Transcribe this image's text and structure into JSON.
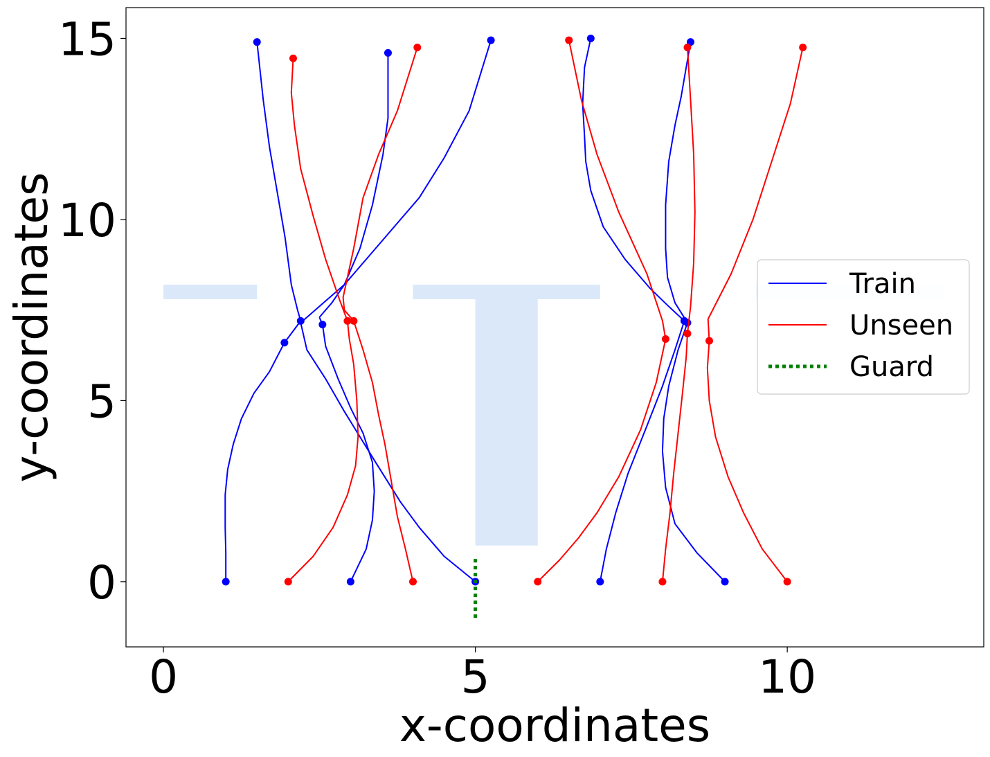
{
  "chart_data": {
    "type": "line",
    "title": "",
    "xlabel": "x-coordinates",
    "ylabel": "y-coordinates",
    "xlim": [
      -0.6,
      13.15
    ],
    "ylim": [
      -1.8,
      15.85
    ],
    "xticks": [
      0,
      5,
      10
    ],
    "yticks": [
      0,
      5,
      10,
      15
    ],
    "grid": false,
    "legend_position": "center-right",
    "colors": {
      "train": "#0000ff",
      "unseen": "#ff0000",
      "guard": "#008000",
      "background_shape": "#dbe8fa"
    },
    "legend": [
      {
        "label": "Train",
        "color": "#0000ff",
        "style": "solid"
      },
      {
        "label": "Unseen",
        "color": "#ff0000",
        "style": "solid"
      },
      {
        "label": "Guard",
        "color": "#008000",
        "style": "dotted"
      }
    ],
    "background_shapes": [
      {
        "points": [
          [
            0,
            7.8
          ],
          [
            1.5,
            7.8
          ],
          [
            1.5,
            8.2
          ],
          [
            0,
            8.2
          ]
        ]
      },
      {
        "points": [
          [
            4,
            7.8
          ],
          [
            7,
            7.8
          ],
          [
            7,
            8.2
          ],
          [
            4,
            8.2
          ]
        ]
      },
      {
        "points": [
          [
            5,
            1
          ],
          [
            6,
            1
          ],
          [
            6,
            7.8
          ],
          [
            5,
            7.8
          ]
        ]
      },
      {
        "points": [
          [
            9.5,
            7.8
          ],
          [
            12.5,
            7.8
          ],
          [
            12.5,
            8.2
          ],
          [
            9.5,
            8.2
          ]
        ],
        "faint": true
      }
    ],
    "guard": {
      "x": [
        5,
        5
      ],
      "y": [
        -1,
        0.7
      ]
    },
    "series": [
      {
        "group": "train",
        "points": [
          [
            1.0,
            0
          ],
          [
            1.0,
            0.8
          ],
          [
            0.99,
            1.5
          ],
          [
            0.99,
            2.4
          ],
          [
            1.03,
            3.1
          ],
          [
            1.12,
            3.8
          ],
          [
            1.25,
            4.5
          ],
          [
            1.45,
            5.2
          ],
          [
            1.7,
            5.8
          ],
          [
            1.94,
            6.6
          ],
          [
            2.2,
            7.2
          ]
        ],
        "markers": [
          [
            1.0,
            0
          ],
          [
            1.94,
            6.6
          ],
          [
            2.2,
            7.2
          ]
        ]
      },
      {
        "group": "train",
        "points": [
          [
            2.2,
            7.2
          ],
          [
            2.15,
            7.5
          ],
          [
            2.05,
            8.2
          ],
          [
            1.95,
            9.5
          ],
          [
            1.82,
            10.8
          ],
          [
            1.7,
            12
          ],
          [
            1.6,
            13.3
          ],
          [
            1.5,
            14.9
          ]
        ],
        "markers": [
          [
            1.5,
            14.9
          ]
        ]
      },
      {
        "group": "train",
        "points": [
          [
            3.0,
            0
          ],
          [
            3.25,
            0.9
          ],
          [
            3.35,
            1.7
          ],
          [
            3.38,
            2.5
          ],
          [
            3.35,
            3.3
          ],
          [
            3.2,
            4.1
          ],
          [
            3.0,
            4.8
          ],
          [
            2.8,
            5.6
          ],
          [
            2.6,
            6.5
          ],
          [
            2.55,
            7.1
          ],
          [
            2.5,
            7.3
          ]
        ],
        "markers": [
          [
            3.0,
            0
          ],
          [
            2.55,
            7.1
          ]
        ]
      },
      {
        "group": "train",
        "points": [
          [
            2.5,
            7.3
          ],
          [
            2.7,
            7.7
          ],
          [
            2.9,
            8.2
          ],
          [
            3.15,
            9.2
          ],
          [
            3.35,
            10.4
          ],
          [
            3.52,
            11.8
          ],
          [
            3.6,
            12.8
          ],
          [
            3.6,
            14.6
          ]
        ],
        "markers": [
          [
            3.6,
            14.6
          ]
        ]
      },
      {
        "group": "train",
        "points": [
          [
            5.0,
            0
          ],
          [
            4.5,
            0.7
          ],
          [
            4.1,
            1.5
          ],
          [
            3.8,
            2.2
          ],
          [
            3.4,
            3.3
          ],
          [
            2.9,
            4.7
          ],
          [
            2.6,
            5.6
          ],
          [
            2.3,
            6.4
          ],
          [
            2.2,
            7.15
          ]
        ],
        "markers": [
          [
            5.0,
            0
          ]
        ]
      },
      {
        "group": "train",
        "points": [
          [
            2.2,
            7.15
          ],
          [
            2.5,
            7.6
          ],
          [
            2.9,
            8.2
          ],
          [
            3.3,
            9
          ],
          [
            3.7,
            9.8
          ],
          [
            4.1,
            10.6
          ],
          [
            4.5,
            11.7
          ],
          [
            4.9,
            13.0
          ],
          [
            5.25,
            14.95
          ]
        ],
        "markers": [
          [
            5.25,
            14.95
          ]
        ]
      },
      {
        "group": "train",
        "points": [
          [
            7.0,
            0
          ],
          [
            7.1,
            0.9
          ],
          [
            7.25,
            1.9
          ],
          [
            7.45,
            3.0
          ],
          [
            7.75,
            4.3
          ],
          [
            8.0,
            5.4
          ],
          [
            8.2,
            6.4
          ],
          [
            8.35,
            7.2
          ]
        ],
        "markers": [
          [
            7.0,
            0
          ],
          [
            8.35,
            7.2
          ]
        ]
      },
      {
        "group": "train",
        "points": [
          [
            8.35,
            7.2
          ],
          [
            8.1,
            7.6
          ],
          [
            7.8,
            8.1
          ],
          [
            7.4,
            8.9
          ],
          [
            7.05,
            9.8
          ],
          [
            6.85,
            10.8
          ],
          [
            6.77,
            11.6
          ],
          [
            6.75,
            12.3
          ],
          [
            6.72,
            13.2
          ],
          [
            6.75,
            14.2
          ],
          [
            6.85,
            15.0
          ]
        ],
        "markers": [
          [
            6.85,
            15.0
          ]
        ]
      },
      {
        "group": "train",
        "points": [
          [
            9.0,
            0
          ],
          [
            8.55,
            0.8
          ],
          [
            8.2,
            1.6
          ],
          [
            8.05,
            2.6
          ],
          [
            8.0,
            3.6
          ],
          [
            8.02,
            4.5
          ],
          [
            8.1,
            5.4
          ],
          [
            8.25,
            6.4
          ],
          [
            8.4,
            7.15
          ]
        ],
        "markers": [
          [
            9.0,
            0
          ],
          [
            8.4,
            7.15
          ]
        ]
      },
      {
        "group": "train",
        "points": [
          [
            8.4,
            7.15
          ],
          [
            8.2,
            7.7
          ],
          [
            8.08,
            8.4
          ],
          [
            8.05,
            9.2
          ],
          [
            8.05,
            10.4
          ],
          [
            8.1,
            11.6
          ],
          [
            8.2,
            12.6
          ],
          [
            8.3,
            13.4
          ],
          [
            8.45,
            14.9
          ]
        ],
        "markers": [
          [
            8.45,
            14.9
          ]
        ]
      },
      {
        "group": "unseen",
        "points": [
          [
            2.0,
            0
          ],
          [
            2.4,
            0.7
          ],
          [
            2.72,
            1.5
          ],
          [
            2.95,
            2.4
          ],
          [
            3.08,
            3.2
          ],
          [
            3.12,
            4.0
          ],
          [
            3.1,
            5.0
          ],
          [
            3.05,
            6.0
          ],
          [
            2.98,
            6.7
          ],
          [
            2.95,
            7.2
          ]
        ],
        "markers": [
          [
            2.0,
            0
          ],
          [
            2.95,
            7.2
          ]
        ]
      },
      {
        "group": "unseen",
        "points": [
          [
            2.95,
            7.2
          ],
          [
            2.82,
            7.8
          ],
          [
            2.6,
            8.9
          ],
          [
            2.4,
            10.1
          ],
          [
            2.2,
            11.4
          ],
          [
            2.1,
            12.6
          ],
          [
            2.05,
            13.5
          ],
          [
            2.08,
            14.45
          ]
        ],
        "markers": [
          [
            2.08,
            14.45
          ]
        ]
      },
      {
        "group": "unseen",
        "points": [
          [
            4.0,
            0
          ],
          [
            3.88,
            0.9
          ],
          [
            3.75,
            1.8
          ],
          [
            3.65,
            2.8
          ],
          [
            3.55,
            3.8
          ],
          [
            3.45,
            4.6
          ],
          [
            3.35,
            5.5
          ],
          [
            3.2,
            6.4
          ],
          [
            3.05,
            7.2
          ]
        ],
        "markers": [
          [
            4.0,
            0
          ],
          [
            3.05,
            7.2
          ]
        ]
      },
      {
        "group": "unseen",
        "points": [
          [
            3.05,
            7.2
          ],
          [
            2.9,
            7.5
          ],
          [
            2.88,
            7.85
          ],
          [
            3.05,
            9.2
          ],
          [
            3.2,
            10.6
          ],
          [
            3.45,
            11.8
          ],
          [
            3.75,
            13.0
          ],
          [
            4.07,
            14.75
          ]
        ],
        "markers": [
          [
            4.07,
            14.75
          ]
        ]
      },
      {
        "group": "unseen",
        "points": [
          [
            6.0,
            0
          ],
          [
            6.35,
            0.6
          ],
          [
            6.65,
            1.2
          ],
          [
            6.95,
            1.9
          ],
          [
            7.3,
            2.9
          ],
          [
            7.65,
            4.2
          ],
          [
            7.9,
            5.5
          ],
          [
            8.05,
            6.7
          ]
        ],
        "markers": [
          [
            6.0,
            0
          ],
          [
            8.05,
            6.7
          ]
        ]
      },
      {
        "group": "unseen",
        "points": [
          [
            8.05,
            6.7
          ],
          [
            8.0,
            7.2
          ],
          [
            7.75,
            8.5
          ],
          [
            7.3,
            10.2
          ],
          [
            6.95,
            11.8
          ],
          [
            6.7,
            13.3
          ],
          [
            6.5,
            14.95
          ]
        ],
        "markers": [
          [
            6.5,
            14.95
          ]
        ]
      },
      {
        "group": "unseen",
        "points": [
          [
            8.0,
            0
          ],
          [
            8.05,
            0.9
          ],
          [
            8.12,
            1.9
          ],
          [
            8.18,
            3.0
          ],
          [
            8.25,
            4.1
          ],
          [
            8.32,
            5.2
          ],
          [
            8.38,
            6.2
          ],
          [
            8.4,
            6.85
          ]
        ],
        "markers": [
          [
            8.0,
            0
          ],
          [
            8.4,
            6.85
          ]
        ]
      },
      {
        "group": "unseen",
        "points": [
          [
            8.4,
            6.85
          ],
          [
            8.45,
            7.6
          ],
          [
            8.5,
            8.8
          ],
          [
            8.52,
            10.2
          ],
          [
            8.5,
            11.8
          ],
          [
            8.45,
            13.3
          ],
          [
            8.4,
            14.75
          ]
        ],
        "markers": [
          [
            8.4,
            14.75
          ]
        ]
      },
      {
        "group": "unseen",
        "points": [
          [
            10.0,
            0
          ],
          [
            9.6,
            0.9
          ],
          [
            9.3,
            1.9
          ],
          [
            9.05,
            2.9
          ],
          [
            8.85,
            4.0
          ],
          [
            8.75,
            5.0
          ],
          [
            8.72,
            5.9
          ],
          [
            8.75,
            6.65
          ]
        ],
        "markers": [
          [
            10.0,
            0
          ],
          [
            8.75,
            6.65
          ]
        ]
      },
      {
        "group": "unseen",
        "points": [
          [
            8.75,
            6.65
          ],
          [
            8.73,
            7.25
          ],
          [
            9.1,
            8.5
          ],
          [
            9.45,
            10.0
          ],
          [
            9.75,
            11.6
          ],
          [
            10.05,
            13.2
          ],
          [
            10.25,
            14.75
          ]
        ],
        "markers": [
          [
            10.25,
            14.75
          ]
        ]
      }
    ]
  }
}
